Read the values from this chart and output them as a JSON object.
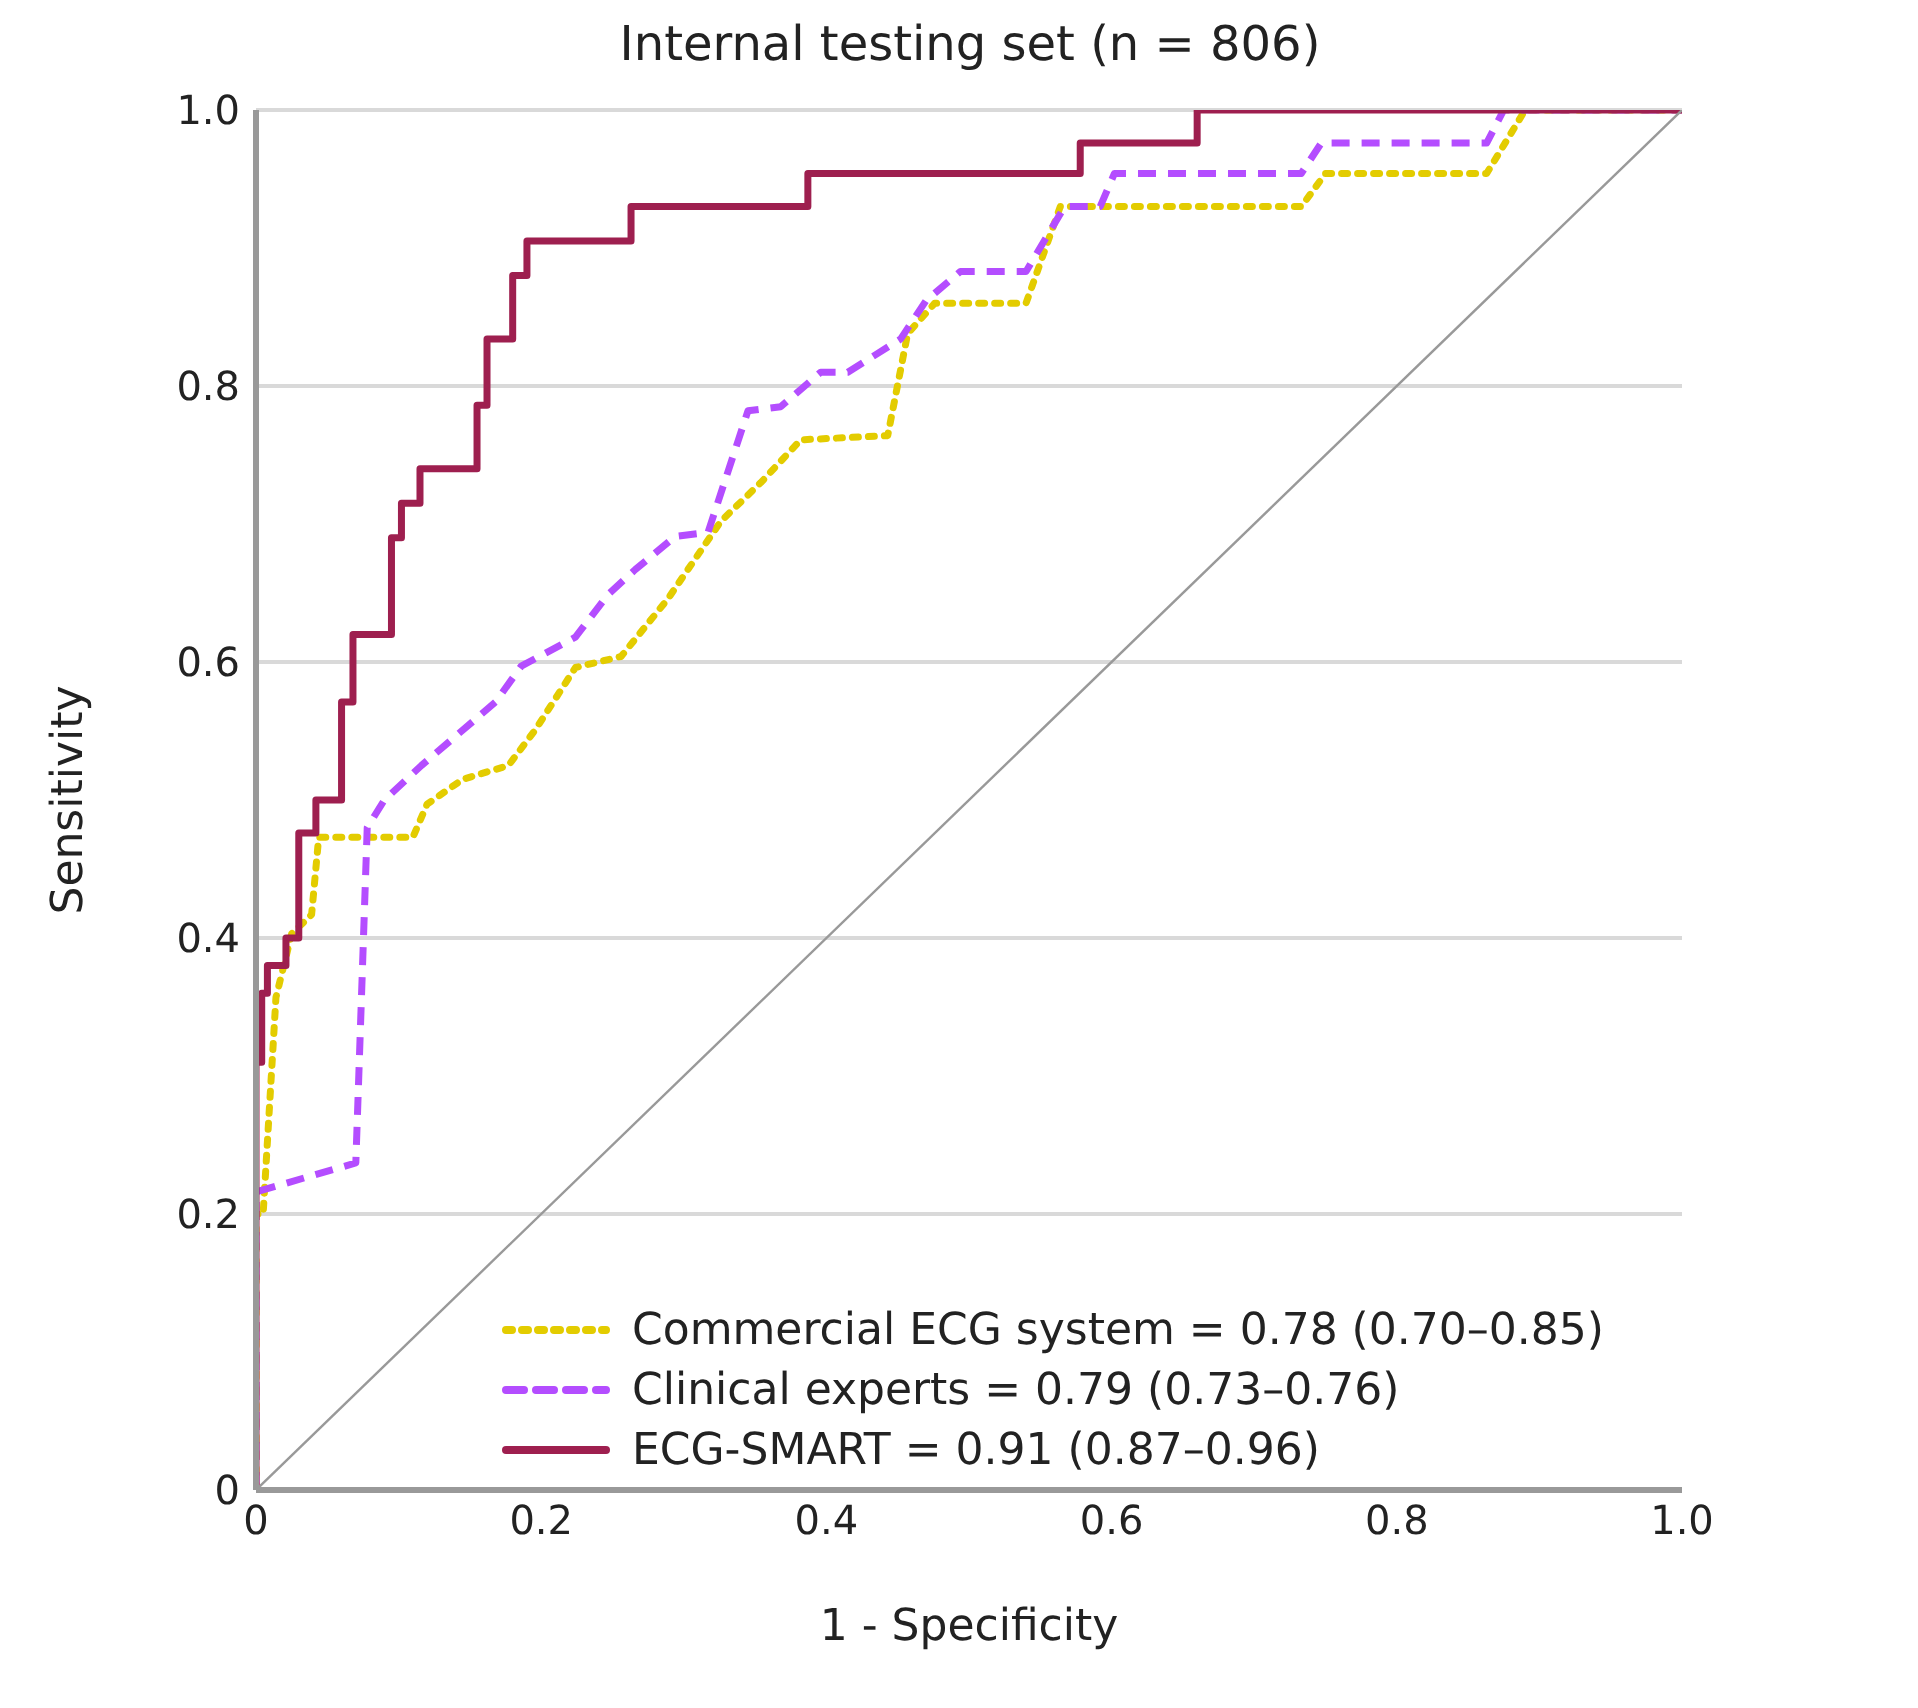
{
  "chart_data": {
    "type": "line",
    "title": "Internal testing set (n = 806)",
    "xlabel": "1 - Specificity",
    "ylabel": "Sensitivity",
    "xlim": [
      0,
      1
    ],
    "ylim": [
      0,
      1
    ],
    "xticks": [
      {
        "value": 0,
        "label": "0"
      },
      0.2,
      0.4,
      0.6,
      0.8,
      {
        "value": 1,
        "label": "1.0"
      }
    ],
    "yticks": [
      {
        "value": 0,
        "label": "0"
      },
      0.2,
      0.4,
      0.6,
      0.8,
      {
        "value": 1,
        "label": "1.0"
      }
    ],
    "grid": "y",
    "legend": "bottom right",
    "marker": "none",
    "series": [
      {
        "name": "Commercial ECG system = 0.78 (0.70–0.85)",
        "color": "#e3cc00",
        "line_style": "dotted",
        "x": [
          0,
          0,
          0.005,
          0.014,
          0.025,
          0.039,
          0.044,
          0.11,
          0.12,
          0.145,
          0.177,
          0.196,
          0.224,
          0.256,
          0.289,
          0.326,
          0.354,
          0.382,
          0.443,
          0.457,
          0.476,
          0.54,
          0.564,
          0.733,
          0.75,
          0.863,
          0.89,
          1
        ],
        "values": [
          0,
          0.2,
          0.2,
          0.357,
          0.403,
          0.417,
          0.473,
          0.473,
          0.497,
          0.515,
          0.525,
          0.551,
          0.596,
          0.604,
          0.646,
          0.702,
          0.73,
          0.761,
          0.764,
          0.838,
          0.86,
          0.86,
          0.93,
          0.93,
          0.954,
          0.954,
          1,
          1
        ]
      },
      {
        "name": "Clinical experts = 0.79 (0.73–0.76)",
        "color": "#b44dff",
        "line_style": "dashed",
        "x": [
          0,
          0,
          0.07,
          0.078,
          0.09,
          0.116,
          0.168,
          0.186,
          0.224,
          0.247,
          0.266,
          0.294,
          0.317,
          0.345,
          0.368,
          0.396,
          0.415,
          0.452,
          0.47,
          0.494,
          0.54,
          0.567,
          0.592,
          0.602,
          0.733,
          0.747,
          0.863,
          0.875,
          1
        ],
        "values": [
          0,
          0.216,
          0.237,
          0.48,
          0.5,
          0.525,
          0.571,
          0.597,
          0.618,
          0.649,
          0.667,
          0.691,
          0.694,
          0.782,
          0.785,
          0.81,
          0.81,
          0.834,
          0.862,
          0.883,
          0.883,
          0.93,
          0.93,
          0.954,
          0.954,
          0.976,
          0.976,
          1,
          1
        ]
      },
      {
        "name": "ECG-SMART = 0.91 (0.87–0.96)",
        "color": "#9e1f4f",
        "line_style": "solid",
        "x": [
          0,
          0,
          0.004,
          0.004,
          0.008,
          0.008,
          0.021,
          0.021,
          0.03,
          0.03,
          0.042,
          0.042,
          0.06,
          0.06,
          0.068,
          0.068,
          0.095,
          0.095,
          0.102,
          0.102,
          0.115,
          0.115,
          0.155,
          0.155,
          0.162,
          0.162,
          0.18,
          0.18,
          0.19,
          0.19,
          0.263,
          0.263,
          0.387,
          0.387,
          0.578,
          0.578,
          0.66,
          0.66,
          1
        ],
        "values": [
          0,
          0.31,
          0.31,
          0.36,
          0.36,
          0.38,
          0.38,
          0.4,
          0.4,
          0.476,
          0.476,
          0.5,
          0.5,
          0.571,
          0.571,
          0.62,
          0.62,
          0.69,
          0.69,
          0.715,
          0.715,
          0.74,
          0.74,
          0.786,
          0.786,
          0.834,
          0.834,
          0.88,
          0.88,
          0.905,
          0.905,
          0.93,
          0.93,
          0.954,
          0.954,
          0.976,
          0.976,
          1,
          1
        ]
      },
      {
        "color": "#999999",
        "line_style": "solid",
        "x": [
          0,
          1
        ],
        "values": [
          0,
          1
        ]
      }
    ]
  }
}
